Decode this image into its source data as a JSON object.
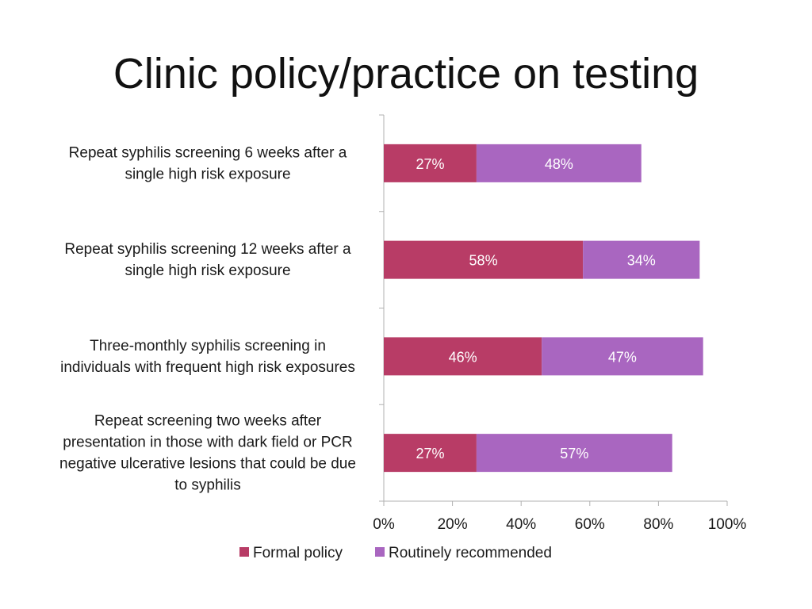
{
  "title": "Clinic policy/practice on testing",
  "chart_data": {
    "type": "bar",
    "orientation": "horizontal",
    "stacked": true,
    "categories": [
      [
        "Repeat syphilis screening 6 weeks after a",
        "single high risk exposure"
      ],
      [
        "Repeat syphilis screening 12 weeks after a",
        "single high risk exposure"
      ],
      [
        "Three-monthly syphilis screening in",
        "individuals with frequent high risk exposures"
      ],
      [
        "Repeat screening two weeks after",
        "presentation in those with dark field or PCR",
        "negative ulcerative lesions that could be due",
        "to syphilis"
      ]
    ],
    "series": [
      {
        "name": "Formal policy",
        "color": "#b83c66",
        "values": [
          27,
          58,
          46,
          27
        ],
        "labels": [
          "27%",
          "58%",
          "46%",
          "27%"
        ]
      },
      {
        "name": "Routinely recommended",
        "color": "#a966c0",
        "values": [
          48,
          34,
          47,
          57
        ],
        "labels": [
          "48%",
          "34%",
          "47%",
          "57%"
        ]
      }
    ],
    "xlim": [
      0,
      100
    ],
    "xticks": [
      "0%",
      "20%",
      "40%",
      "60%",
      "80%",
      "100%"
    ],
    "grid": false,
    "legend": "bottom"
  }
}
